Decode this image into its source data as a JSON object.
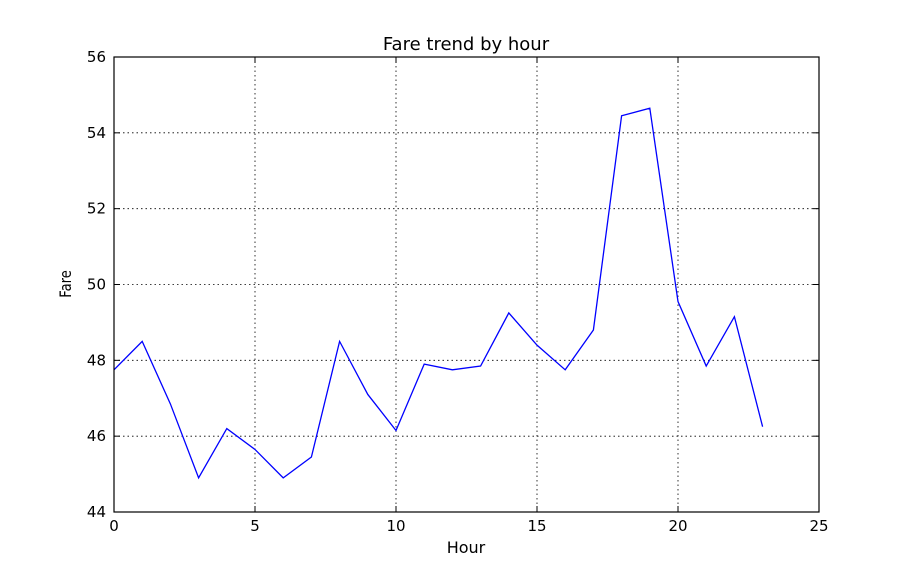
{
  "chart_data": {
    "type": "line",
    "title": "Fare trend by hour",
    "xlabel": "Hour",
    "ylabel": "Fare",
    "xlim": [
      0,
      25
    ],
    "ylim": [
      44,
      56
    ],
    "xticks": [
      0,
      5,
      10,
      15,
      20,
      25
    ],
    "yticks": [
      44,
      46,
      48,
      50,
      52,
      54,
      56
    ],
    "grid": true,
    "line_color": "#0000ff",
    "series": [
      {
        "x": [
          0,
          1,
          2,
          3,
          4,
          5,
          6,
          7,
          8,
          9,
          10,
          11,
          12,
          13,
          14,
          15,
          16,
          17,
          18,
          19,
          20,
          21,
          22,
          23
        ],
        "values": [
          47.75,
          48.5,
          46.85,
          44.9,
          46.2,
          45.65,
          44.9,
          45.45,
          48.5,
          47.1,
          46.15,
          47.9,
          47.75,
          47.85,
          49.25,
          48.4,
          47.75,
          48.8,
          54.45,
          54.65,
          49.55,
          47.85,
          49.15,
          46.25
        ]
      }
    ]
  }
}
